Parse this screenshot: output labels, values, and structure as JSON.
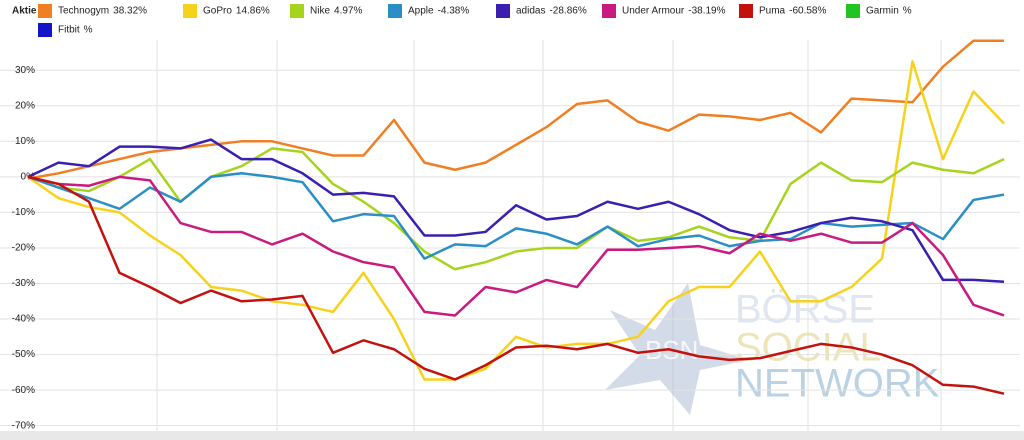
{
  "chart_data": {
    "type": "line",
    "legend_title": "Aktie",
    "ylim": [
      -71.5,
      38.5
    ],
    "yticks": [
      {
        "value": 30,
        "label": "30%"
      },
      {
        "value": 20,
        "label": "20%"
      },
      {
        "value": 10,
        "label": "10%"
      },
      {
        "value": 0,
        "label": "0%"
      },
      {
        "value": -10,
        "label": "-10%"
      },
      {
        "value": -20,
        "label": "-20%"
      },
      {
        "value": -30,
        "label": "-30%"
      },
      {
        "value": -40,
        "label": "-40%"
      },
      {
        "value": -50,
        "label": "-50%"
      },
      {
        "value": -60,
        "label": "-60%"
      },
      {
        "value": -70,
        "label": "-70%"
      }
    ],
    "grid": true,
    "legend": "top",
    "watermark": [
      "BSN",
      "BÖRSE",
      "SOCIAL",
      "NETWORK"
    ],
    "series": [
      {
        "name": "Technogym",
        "change_label": "38.32%",
        "color": "#f07f24",
        "values": [
          -0.5,
          1,
          3,
          5,
          7,
          8,
          9,
          10,
          10,
          8,
          6,
          6,
          16,
          4,
          2,
          4,
          9,
          14,
          20.5,
          21.5,
          15.5,
          13,
          17.5,
          17,
          16,
          18,
          12.5,
          22,
          21.5,
          21,
          31,
          38.3,
          38.3
        ]
      },
      {
        "name": "GoPro",
        "change_label": "14.86%",
        "color": "#f7d21d",
        "values": [
          0,
          -6,
          -8.5,
          -10,
          -16.5,
          -22,
          -31,
          -32,
          -35,
          -36,
          -38,
          -27,
          -40,
          -57,
          -57,
          -54,
          -45,
          -48,
          -47,
          -47,
          -45,
          -35,
          -31,
          -31,
          -21,
          -35,
          -35,
          -31,
          -23,
          32.5,
          5,
          24,
          15
        ]
      },
      {
        "name": "Nike",
        "change_label": "4.97%",
        "color": "#a6d41c",
        "values": [
          0,
          -3,
          -4,
          0,
          5,
          -7,
          0,
          3,
          8,
          7,
          -2,
          -7,
          -13,
          -21,
          -26,
          -24,
          -21,
          -20,
          -20,
          -14,
          -18,
          -17,
          -14,
          -17,
          -18,
          -2,
          4,
          -1,
          -1.5,
          4,
          2,
          1,
          5
        ]
      },
      {
        "name": "Apple",
        "change_label": "-4.38%",
        "color": "#2a8fc4",
        "values": [
          0,
          -3,
          -6,
          -9,
          -3,
          -7,
          0,
          1,
          0,
          -1.5,
          -12.5,
          -10.5,
          -11,
          -23,
          -19,
          -19.5,
          -14.5,
          -16,
          -19,
          -14,
          -19.5,
          -17.5,
          -16.5,
          -19.5,
          -18,
          -17.5,
          -13,
          -14,
          -13.5,
          -13,
          -17.5,
          -6.5,
          -5
        ]
      },
      {
        "name": "adidas",
        "change_label": "-28.86%",
        "color": "#3a1fb0",
        "values": [
          0,
          4,
          3,
          8.5,
          8.5,
          8,
          10.5,
          5,
          5,
          1,
          -5,
          -4.5,
          -5.5,
          -16.5,
          -16.5,
          -15.5,
          -8,
          -12,
          -11,
          -7,
          -9,
          -7,
          -10.5,
          -15,
          -17,
          -15.5,
          -13,
          -11.5,
          -12.5,
          -15,
          -29,
          -29,
          -29.5
        ]
      },
      {
        "name": "Under Armour",
        "change_label": "-38.19%",
        "color": "#c91a7f",
        "values": [
          0,
          -2,
          -2.5,
          0,
          -1,
          -13,
          -15.5,
          -15.5,
          -19,
          -16,
          -21,
          -24,
          -25.5,
          -38,
          -39,
          -31,
          -32.5,
          -29,
          -31,
          -20.5,
          -20.5,
          -20,
          -19.5,
          -21.5,
          -16,
          -18,
          -16,
          -18.5,
          -18.5,
          -13,
          -22,
          -36,
          -39
        ]
      },
      {
        "name": "Puma",
        "change_label": "-60.58%",
        "color": "#c3120e",
        "values": [
          0,
          -2,
          -7,
          -27,
          -31,
          -35.5,
          -32,
          -35,
          -34.5,
          -33.5,
          -49.5,
          -46,
          -48.5,
          -54,
          -57,
          -53,
          -48,
          -47.5,
          -48.5,
          -47,
          -49.5,
          -48.5,
          -50.5,
          -51.5,
          -51,
          -49,
          -47,
          -48,
          -50,
          -53,
          -58.5,
          -59,
          -61
        ]
      },
      {
        "name": "Garmin",
        "change_label": "%",
        "color": "#22c422",
        "values": []
      },
      {
        "name": "Fitbit",
        "change_label": "%",
        "color": "#1414c8",
        "values": []
      }
    ]
  }
}
